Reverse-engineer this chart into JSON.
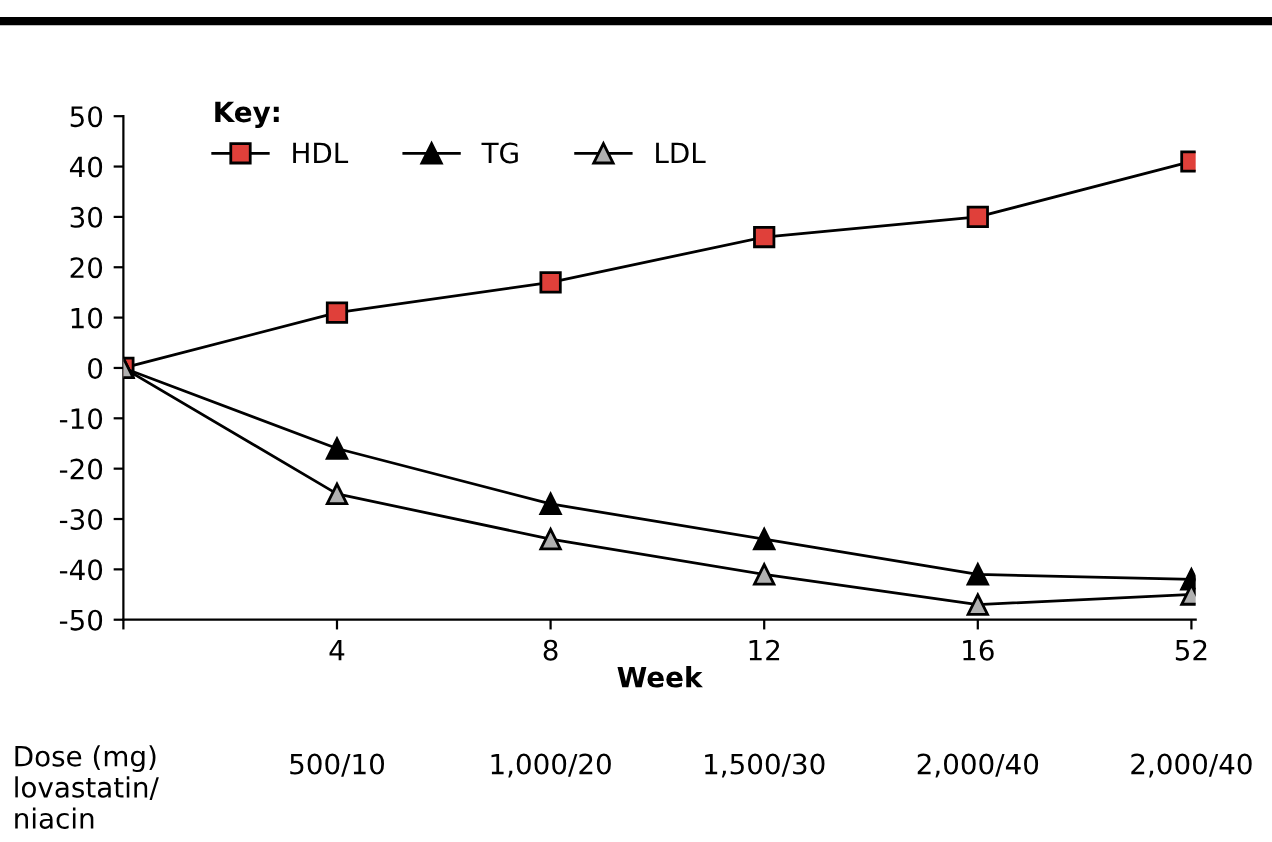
{
  "chart_data": {
    "type": "line",
    "xlabel": "Week",
    "legend_title": "Key:",
    "legend": "top left",
    "grid": false,
    "categories": [
      null,
      "4",
      "8",
      "12",
      "16",
      "52"
    ],
    "series": [
      {
        "name": "HDL",
        "color": "#e0403a",
        "marker": "square",
        "values": [
          0,
          11,
          17,
          26,
          30,
          41
        ]
      },
      {
        "name": "TG",
        "color": "#000000",
        "marker": "triangle",
        "values": [
          0,
          -16,
          -27,
          -34,
          -41,
          -42
        ]
      },
      {
        "name": "LDL",
        "color": "#b0b0b0",
        "marker": "triangle",
        "values": [
          0,
          -25,
          -34,
          -41,
          -47,
          -45
        ]
      }
    ],
    "ylim": [
      -50,
      50
    ],
    "yticks": [
      -50,
      -40,
      -30,
      -20,
      -10,
      0,
      10,
      20,
      30,
      40,
      50
    ],
    "annotations": [
      "Dose (mg)\nlovastatin/\nniacin",
      "500/10",
      "1,000/20",
      "1,500/30",
      "2,000/40",
      "2,000/40"
    ]
  }
}
